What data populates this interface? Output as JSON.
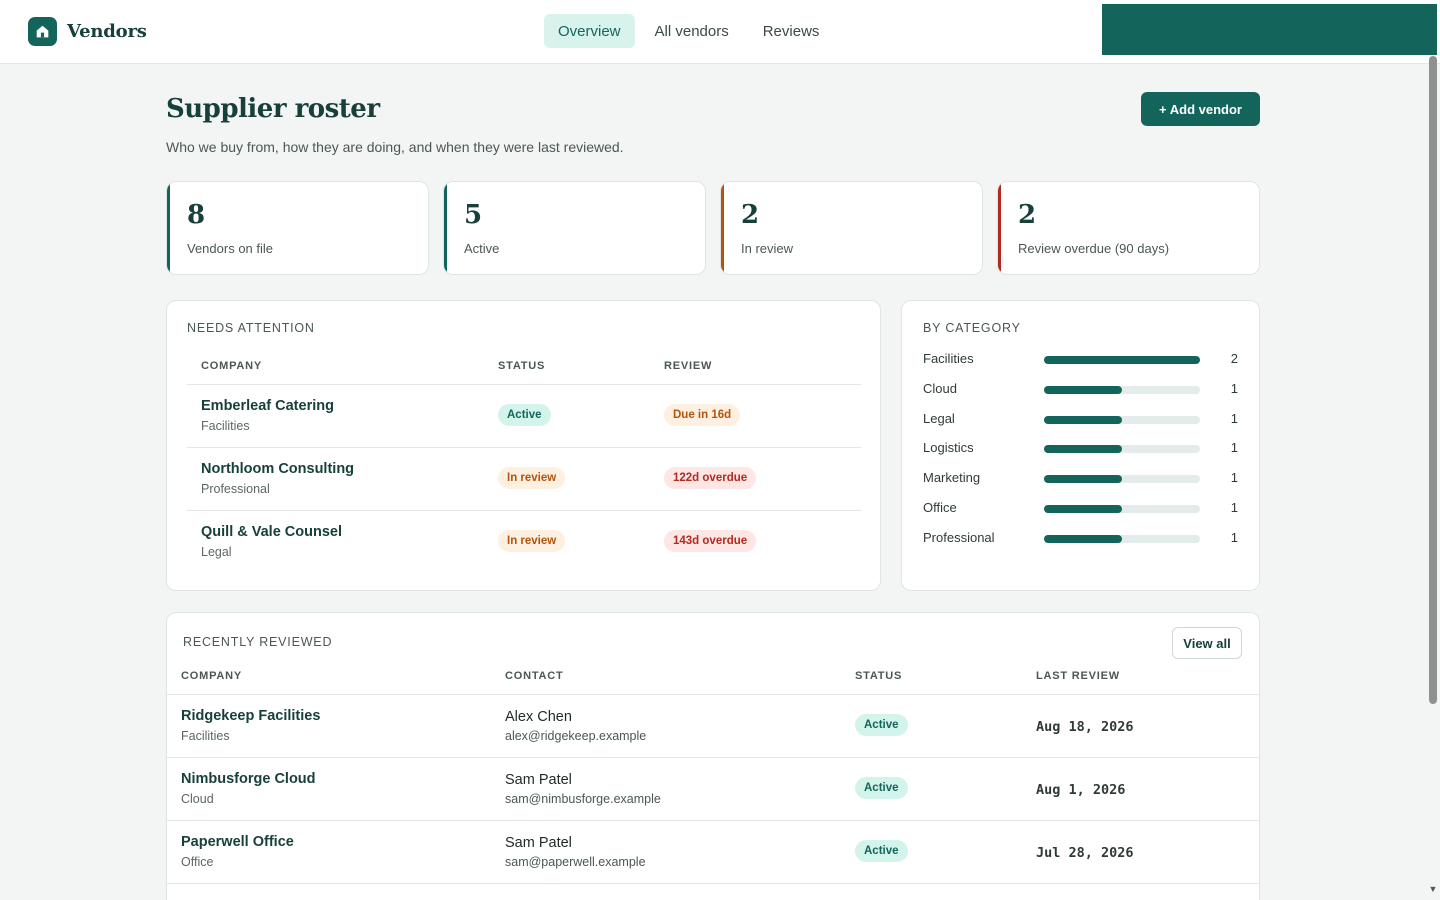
{
  "app": {
    "name": "Vendors",
    "logo_icon": "home-icon"
  },
  "nav": {
    "tabs": [
      {
        "label": "Overview",
        "active": true
      },
      {
        "label": "All vendors",
        "active": false
      },
      {
        "label": "Reviews",
        "active": false
      }
    ]
  },
  "page": {
    "title": "Supplier roster",
    "subtitle": "Who we buy from, how they are doing, and when they were last reviewed.",
    "add_button": "+ Add vendor"
  },
  "stats": [
    {
      "value": "8",
      "label": "Vendors on file",
      "accent": "#13655c"
    },
    {
      "value": "5",
      "label": "Active",
      "accent": "#13655c"
    },
    {
      "value": "2",
      "label": "In review",
      "accent": "#b3530d"
    },
    {
      "value": "2",
      "label": "Review overdue (90 days)",
      "accent": "#b22a1f"
    }
  ],
  "attention": {
    "title": "NEEDS ATTENTION",
    "columns": {
      "company": "COMPANY",
      "status": "STATUS",
      "review": "REVIEW"
    },
    "rows": [
      {
        "company": "Emberleaf Catering",
        "category": "Facilities",
        "status": "Active",
        "status_kind": "active",
        "review": "Due in 16d",
        "review_kind": "due"
      },
      {
        "company": "Northloom Consulting",
        "category": "Professional",
        "status": "In review",
        "status_kind": "review",
        "review": "122d overdue",
        "review_kind": "overdue"
      },
      {
        "company": "Quill & Vale Counsel",
        "category": "Legal",
        "status": "In review",
        "status_kind": "review",
        "review": "143d overdue",
        "review_kind": "overdue"
      }
    ]
  },
  "categories": {
    "title": "BY CATEGORY",
    "max": 2,
    "items": [
      {
        "label": "Facilities",
        "count": 2
      },
      {
        "label": "Cloud",
        "count": 1
      },
      {
        "label": "Legal",
        "count": 1
      },
      {
        "label": "Logistics",
        "count": 1
      },
      {
        "label": "Marketing",
        "count": 1
      },
      {
        "label": "Office",
        "count": 1
      },
      {
        "label": "Professional",
        "count": 1
      }
    ]
  },
  "recent": {
    "title": "RECENTLY REVIEWED",
    "view_all": "View all",
    "columns": {
      "company": "COMPANY",
      "contact": "CONTACT",
      "status": "STATUS",
      "last_review": "LAST REVIEW"
    },
    "rows": [
      {
        "company": "Ridgekeep Facilities",
        "category": "Facilities",
        "contact": "Alex Chen",
        "email": "alex@ridgekeep.example",
        "status": "Active",
        "last_review": "Aug 18, 2026"
      },
      {
        "company": "Nimbusforge Cloud",
        "category": "Cloud",
        "contact": "Sam Patel",
        "email": "sam@nimbusforge.example",
        "status": "Active",
        "last_review": "Aug 1, 2026"
      },
      {
        "company": "Paperwell Office",
        "category": "Office",
        "contact": "Sam Patel",
        "email": "sam@paperwell.example",
        "status": "Active",
        "last_review": "Jul 28, 2026"
      }
    ]
  }
}
